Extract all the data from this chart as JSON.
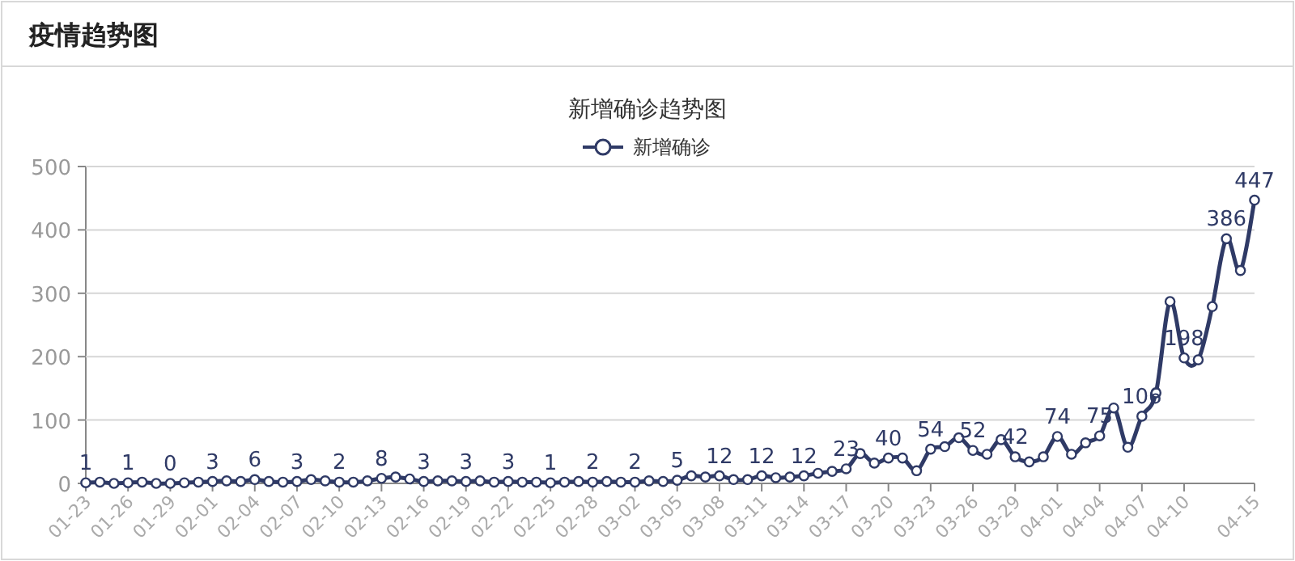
{
  "chart_data": {
    "type": "line",
    "title": "新增确诊趋势图",
    "annotations": [
      "疫情趋势图"
    ],
    "categories": [
      "01-23",
      null,
      null,
      "01-26",
      null,
      null,
      "01-29",
      null,
      null,
      "02-01",
      null,
      null,
      "02-04",
      null,
      null,
      "02-07",
      null,
      null,
      "02-10",
      null,
      null,
      "02-13",
      null,
      null,
      "02-16",
      null,
      null,
      "02-19",
      null,
      null,
      "02-22",
      null,
      null,
      "02-25",
      null,
      null,
      "02-28",
      null,
      null,
      "03-02",
      null,
      null,
      "03-05",
      null,
      null,
      "03-08",
      null,
      null,
      "03-11",
      null,
      null,
      "03-14",
      null,
      null,
      "03-17",
      null,
      null,
      "03-20",
      null,
      null,
      "03-23",
      null,
      null,
      "03-26",
      null,
      null,
      "03-29",
      null,
      null,
      "04-01",
      null,
      null,
      "04-04",
      null,
      null,
      "04-07",
      null,
      null,
      "04-10",
      null,
      null,
      null,
      null,
      "04-15"
    ],
    "series": [
      {
        "name": "新增确诊",
        "color": "#2f3a66",
        "values": [
          1,
          2,
          0,
          1,
          2,
          0,
          0,
          1,
          2,
          3,
          4,
          3,
          6,
          3,
          2,
          3,
          6,
          4,
          2,
          2,
          4,
          8,
          10,
          7,
          3,
          4,
          4,
          3,
          4,
          2,
          3,
          2,
          2,
          1,
          2,
          3,
          2,
          3,
          2,
          2,
          4,
          3,
          5,
          12,
          10,
          12,
          6,
          6,
          12,
          9,
          10,
          12,
          16,
          19,
          23,
          47,
          32,
          40,
          40,
          20,
          54,
          58,
          72,
          52,
          46,
          69,
          42,
          34,
          42,
          74,
          46,
          64,
          75,
          119,
          57,
          106,
          143,
          287,
          198,
          195,
          279,
          386,
          336,
          447
        ],
        "value_labels": [
          "1",
          null,
          null,
          "1",
          null,
          null,
          "0",
          null,
          null,
          "3",
          null,
          null,
          "6",
          null,
          null,
          "3",
          null,
          null,
          "2",
          null,
          null,
          "8",
          null,
          null,
          "3",
          null,
          null,
          "3",
          null,
          null,
          "3",
          null,
          null,
          "1",
          null,
          null,
          "2",
          null,
          null,
          "2",
          null,
          null,
          "5",
          null,
          null,
          "12",
          null,
          null,
          "12",
          null,
          null,
          "12",
          null,
          null,
          "23",
          null,
          null,
          "40",
          null,
          null,
          "54",
          null,
          null,
          "52",
          null,
          null,
          "42",
          null,
          null,
          "74",
          null,
          null,
          "75",
          null,
          null,
          "106",
          null,
          null,
          "198",
          null,
          null,
          "386",
          null,
          "447"
        ]
      }
    ],
    "ylim": [
      0,
      500
    ],
    "yticks": [
      0,
      100,
      200,
      300,
      400,
      500
    ],
    "grid": "y",
    "legend": "top",
    "marker": "circle",
    "line_style": "solid"
  }
}
